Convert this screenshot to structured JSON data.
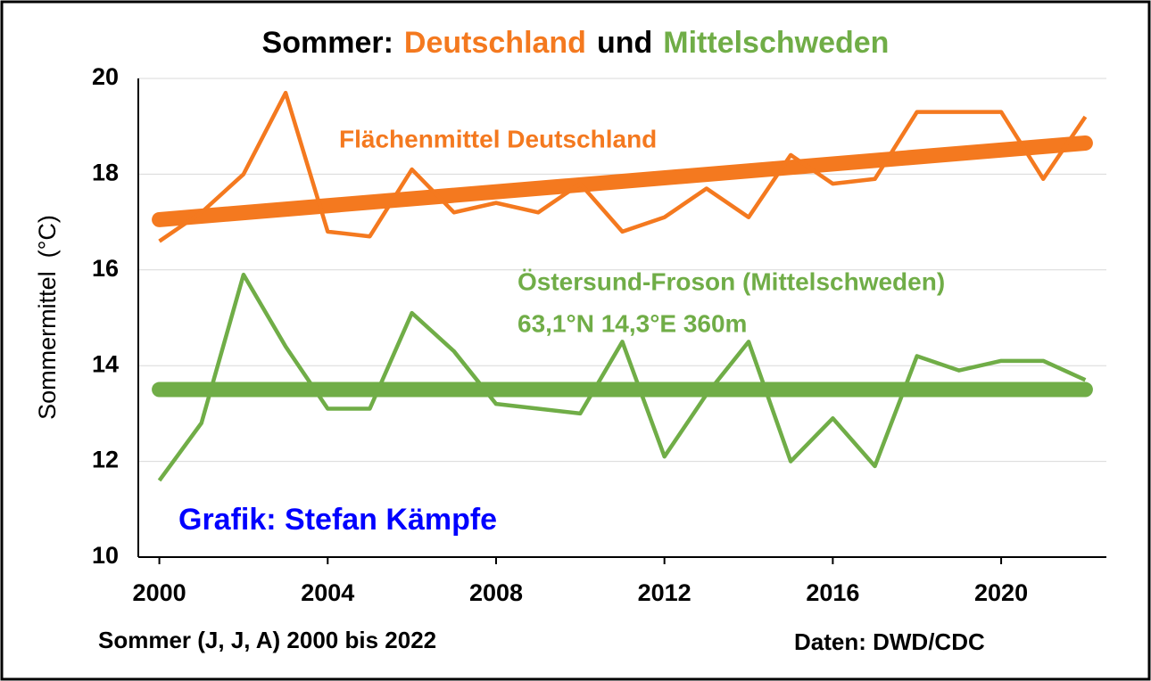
{
  "chart_data": {
    "type": "line",
    "title_parts": [
      {
        "text": "Sommer:",
        "color": "#000000"
      },
      {
        "text": "Deutschland",
        "color": "#f4791f"
      },
      {
        "text": "und",
        "color": "#000000"
      },
      {
        "text": "Mittelschweden",
        "color": "#70ad47"
      }
    ],
    "y_label": "Sommermittel  (°C)",
    "x_label": "Sommer (J, J, A) 2000 bis 2022",
    "annotations": [
      {
        "text": "Flächenmittel Deutschland",
        "color": "#f4791f"
      },
      {
        "text": "Östersund-Froson (Mittelschweden)",
        "color": "#70ad47"
      },
      {
        "text": "63,1°N 14,3°E 360m",
        "color": "#70ad47"
      },
      {
        "text": "Grafik: Stefan Kämpfe",
        "color": "#0000ff"
      },
      {
        "text": "Daten: DWD/CDC",
        "color": "#000000"
      }
    ],
    "x": [
      2000,
      2001,
      2002,
      2003,
      2004,
      2005,
      2006,
      2007,
      2008,
      2009,
      2010,
      2011,
      2012,
      2013,
      2014,
      2015,
      2016,
      2017,
      2018,
      2019,
      2020,
      2021,
      2022
    ],
    "series": [
      {
        "color": "#f4791f",
        "values": [
          16.6,
          17.2,
          18.0,
          19.7,
          16.8,
          16.7,
          18.1,
          17.2,
          17.4,
          17.2,
          17.8,
          16.8,
          17.1,
          17.7,
          17.1,
          18.4,
          17.8,
          17.9,
          19.3,
          19.3,
          19.3,
          17.9,
          19.2
        ],
        "trend": [
          17.05,
          18.65
        ]
      },
      {
        "color": "#70ad47",
        "values": [
          11.6,
          12.8,
          15.9,
          14.4,
          13.1,
          13.1,
          15.1,
          14.3,
          13.2,
          13.1,
          13.0,
          14.5,
          12.1,
          13.4,
          14.5,
          12.0,
          12.9,
          11.9,
          14.2,
          13.9,
          14.1,
          14.1,
          13.7
        ],
        "trend": [
          13.5,
          13.5
        ]
      }
    ],
    "xlim": [
      1999.5,
      2022.5
    ],
    "xticks": [
      2000,
      2004,
      2008,
      2012,
      2016,
      2020
    ],
    "ylim": [
      10,
      20
    ],
    "yticks": [
      10,
      12,
      14,
      16,
      18,
      20
    ],
    "grid": true
  }
}
